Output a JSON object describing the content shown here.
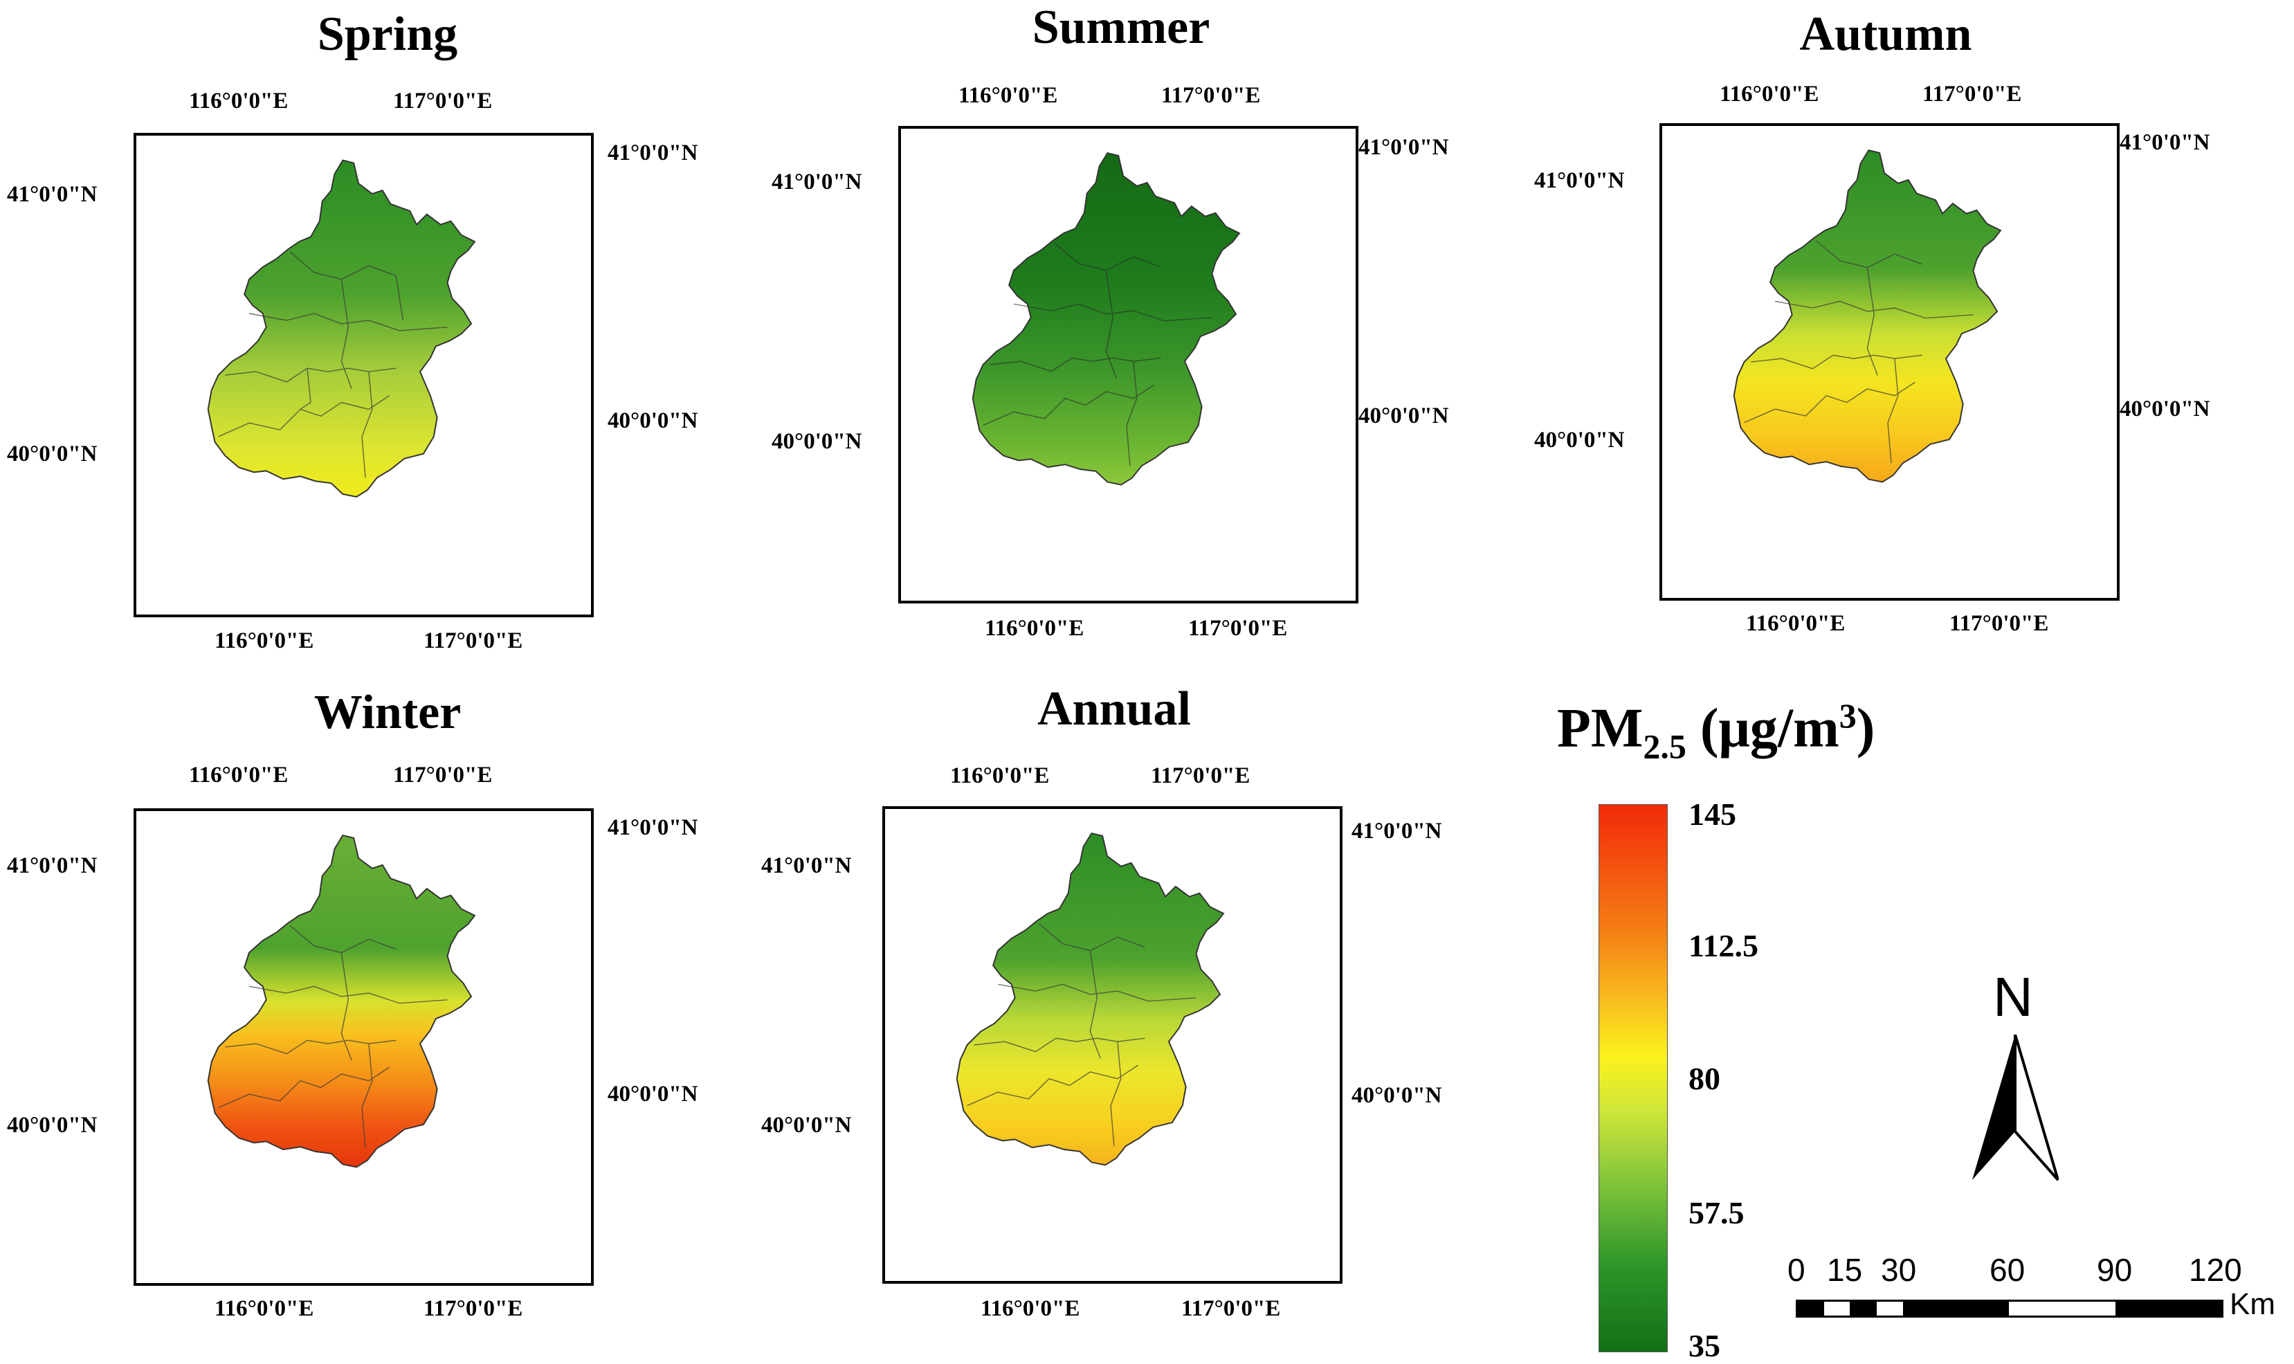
{
  "panels": [
    {
      "id": "spring",
      "title": "Spring",
      "theme": "spring"
    },
    {
      "id": "summer",
      "title": "Summer",
      "theme": "summer"
    },
    {
      "id": "autumn",
      "title": "Autumn",
      "theme": "autumn"
    },
    {
      "id": "winter",
      "title": "Winter",
      "theme": "winter"
    },
    {
      "id": "annual",
      "title": "Annual",
      "theme": "annual"
    }
  ],
  "axes": {
    "lon_ticks": [
      "116°0'0\"E",
      "117°0'0\"E"
    ],
    "lat_ticks": [
      "41°0'0\"N",
      "40°0'0\"N"
    ]
  },
  "legend": {
    "title_main": "PM",
    "title_sub": "2.5",
    "title_unit_prefix": " (μg/m",
    "title_unit_sup": "3",
    "title_unit_suffix": ")",
    "labels": [
      "145",
      "112.5",
      "80",
      "57.5",
      "35"
    ],
    "min": 35,
    "max": 145,
    "colors": {
      "high": "#f22a0a",
      "upper": "#f57a14",
      "mid": "#fbf21c",
      "lower": "#7cc23a",
      "low": "#127015"
    }
  },
  "north_arrow": {
    "label": "N"
  },
  "scalebar": {
    "ticks": [
      "0",
      "15",
      "30",
      "60",
      "90",
      "120"
    ],
    "unit": "Km",
    "values": [
      0,
      15,
      30,
      60,
      90,
      120
    ]
  }
}
